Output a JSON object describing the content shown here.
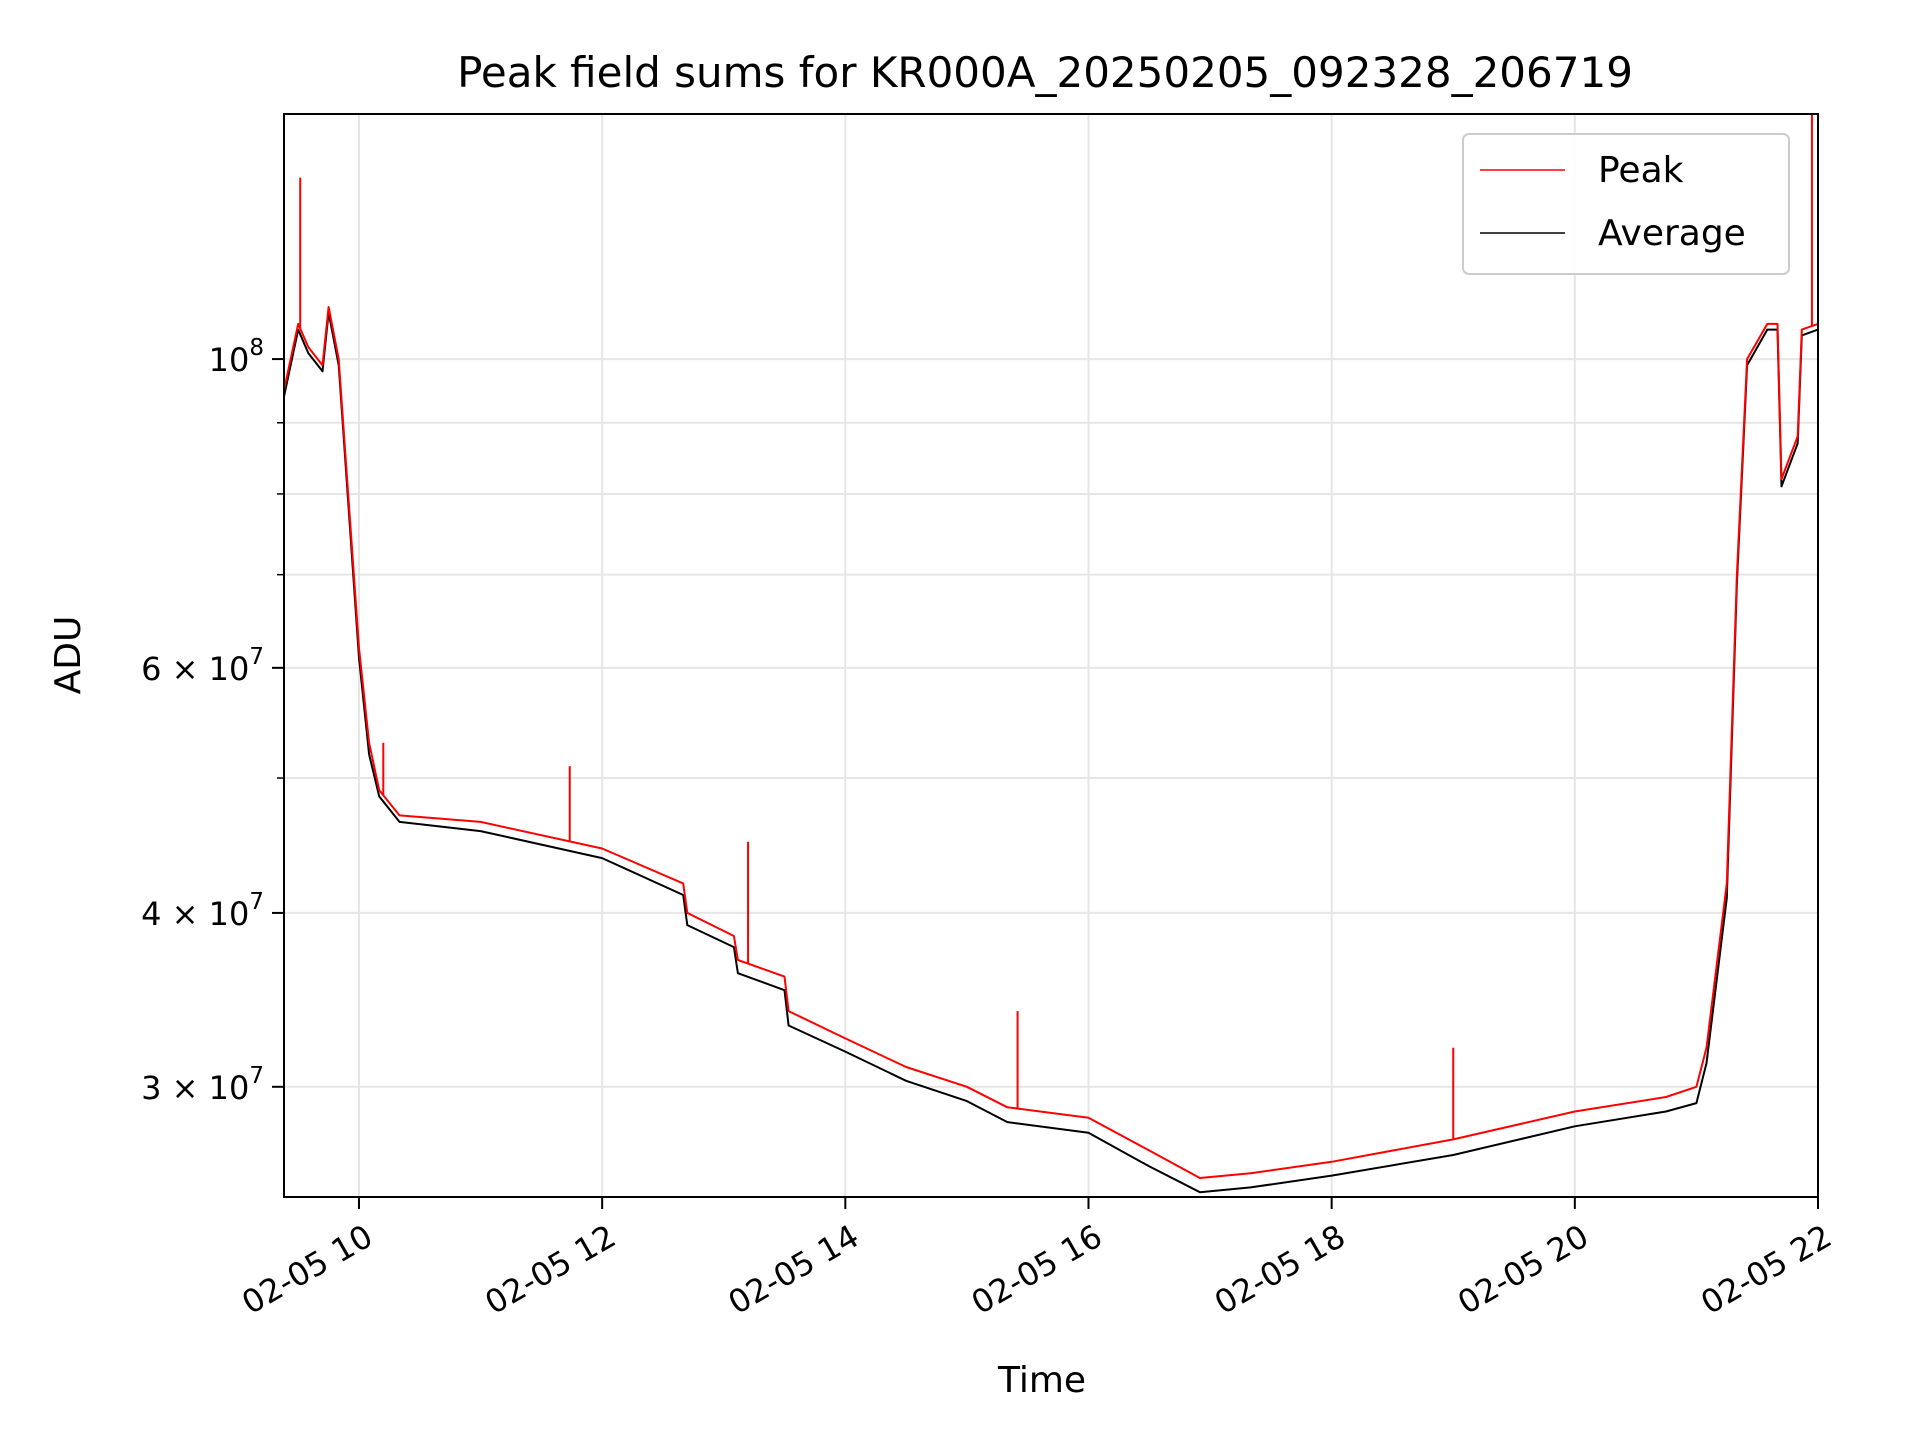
{
  "chart_data": {
    "type": "line",
    "title": "Peak field sums for KR000A_20250205_092328_206719",
    "xlabel": "Time",
    "ylabel": "ADU",
    "yscale": "log",
    "grid": true,
    "legend_position": "top-right",
    "xlim": [
      "2025-02-05 09:23",
      "2025-02-05 22:00"
    ],
    "ylim": [
      25000000,
      150000000
    ],
    "x_ticks": [
      "02-05 10",
      "02-05 12",
      "02-05 14",
      "02-05 16",
      "02-05 18",
      "02-05 20",
      "02-05 22"
    ],
    "x_tick_values": [
      "2025-02-05 10:00",
      "2025-02-05 12:00",
      "2025-02-05 14:00",
      "2025-02-05 16:00",
      "2025-02-05 18:00",
      "2025-02-05 20:00",
      "2025-02-05 22:00"
    ],
    "y_ticks": [
      {
        "value": 100000000,
        "base": "10",
        "exp": "8"
      },
      {
        "value": 60000000,
        "base": "6 × 10",
        "exp": "7"
      },
      {
        "value": 40000000,
        "base": "4 × 10",
        "exp": "7"
      },
      {
        "value": 30000000,
        "base": "3 × 10",
        "exp": "7"
      }
    ],
    "series": [
      {
        "name": "Peak",
        "color": "#ff0000",
        "x": [
          "2025-02-05 09:23",
          "2025-02-05 09:30",
          "2025-02-05 09:35",
          "2025-02-05 09:42",
          "2025-02-05 09:45",
          "2025-02-05 09:50",
          "2025-02-05 10:00",
          "2025-02-05 10:05",
          "2025-02-05 10:10",
          "2025-02-05 10:20",
          "2025-02-05 11:00",
          "2025-02-05 12:00",
          "2025-02-05 12:40",
          "2025-02-05 12:42",
          "2025-02-05 13:05",
          "2025-02-05 13:07",
          "2025-02-05 13:30",
          "2025-02-05 13:32",
          "2025-02-05 14:00",
          "2025-02-05 14:30",
          "2025-02-05 15:00",
          "2025-02-05 15:20",
          "2025-02-05 16:00",
          "2025-02-05 16:30",
          "2025-02-05 16:55",
          "2025-02-05 17:20",
          "2025-02-05 18:00",
          "2025-02-05 19:00",
          "2025-02-05 20:00",
          "2025-02-05 20:45",
          "2025-02-05 21:00",
          "2025-02-05 21:05",
          "2025-02-05 21:15",
          "2025-02-05 21:20",
          "2025-02-05 21:25",
          "2025-02-05 21:35",
          "2025-02-05 21:40",
          "2025-02-05 21:42",
          "2025-02-05 21:50",
          "2025-02-05 21:52",
          "2025-02-05 22:00"
        ],
        "values": [
          95000000,
          106000000,
          102000000,
          99000000,
          109000000,
          100000000,
          62000000,
          53000000,
          49000000,
          47000000,
          46500000,
          44500000,
          42000000,
          40000000,
          38500000,
          37000000,
          36000000,
          34000000,
          32500000,
          31000000,
          30000000,
          29000000,
          28500000,
          27000000,
          25800000,
          26000000,
          26500000,
          27500000,
          28800000,
          29500000,
          30000000,
          32000000,
          42000000,
          70000000,
          100000000,
          106000000,
          106000000,
          82000000,
          88000000,
          105000000,
          106000000
        ]
      },
      {
        "name": "Average",
        "color": "#000000",
        "x": [
          "2025-02-05 09:23",
          "2025-02-05 09:30",
          "2025-02-05 09:35",
          "2025-02-05 09:42",
          "2025-02-05 09:45",
          "2025-02-05 09:50",
          "2025-02-05 10:00",
          "2025-02-05 10:05",
          "2025-02-05 10:10",
          "2025-02-05 10:20",
          "2025-02-05 11:00",
          "2025-02-05 12:00",
          "2025-02-05 12:40",
          "2025-02-05 12:42",
          "2025-02-05 13:05",
          "2025-02-05 13:07",
          "2025-02-05 13:30",
          "2025-02-05 13:32",
          "2025-02-05 14:00",
          "2025-02-05 14:30",
          "2025-02-05 15:00",
          "2025-02-05 15:20",
          "2025-02-05 16:00",
          "2025-02-05 16:30",
          "2025-02-05 16:55",
          "2025-02-05 17:20",
          "2025-02-05 18:00",
          "2025-02-05 19:00",
          "2025-02-05 20:00",
          "2025-02-05 20:45",
          "2025-02-05 21:00",
          "2025-02-05 21:05",
          "2025-02-05 21:15",
          "2025-02-05 21:20",
          "2025-02-05 21:25",
          "2025-02-05 21:35",
          "2025-02-05 21:40",
          "2025-02-05 21:42",
          "2025-02-05 21:50",
          "2025-02-05 21:52",
          "2025-02-05 22:00"
        ],
        "values": [
          94000000,
          105000000,
          101000000,
          98000000,
          108000000,
          99000000,
          61000000,
          52000000,
          48500000,
          46500000,
          45800000,
          43800000,
          41200000,
          39200000,
          37800000,
          36200000,
          35200000,
          33200000,
          31800000,
          30300000,
          29300000,
          28300000,
          27800000,
          26300000,
          25200000,
          25400000,
          25900000,
          26800000,
          28100000,
          28800000,
          29200000,
          31200000,
          41000000,
          69000000,
          99000000,
          105000000,
          105000000,
          81000000,
          87000000,
          104000000,
          105000000
        ]
      }
    ],
    "spikes": [
      {
        "series": "Peak",
        "x": "2025-02-05 09:31",
        "value": 135000000
      },
      {
        "series": "Peak",
        "x": "2025-02-05 10:12",
        "value": 53000000
      },
      {
        "series": "Peak",
        "x": "2025-02-05 11:44",
        "value": 51000000
      },
      {
        "series": "Peak",
        "x": "2025-02-05 13:12",
        "value": 45000000
      },
      {
        "series": "Peak",
        "x": "2025-02-05 15:25",
        "value": 34000000
      },
      {
        "series": "Peak",
        "x": "2025-02-05 19:00",
        "value": 32000000
      },
      {
        "series": "Peak",
        "x": "2025-02-05 21:57",
        "value": 150000000
      }
    ]
  }
}
